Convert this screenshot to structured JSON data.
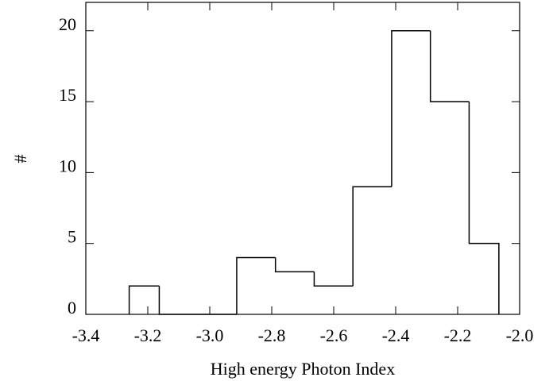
{
  "chart_data": {
    "type": "histogram",
    "x_label": "High energy Photon Index",
    "y_label": "#",
    "bins": [
      -3.26,
      -3.163,
      -3.038,
      -2.913,
      -2.788,
      -2.663,
      -2.538,
      -2.413,
      -2.288,
      -2.163,
      -2.067
    ],
    "values": [
      2,
      0,
      0,
      4,
      3,
      2,
      9,
      20,
      15,
      5
    ],
    "color": "#000000",
    "xlim": [
      -3.4,
      -2.0
    ],
    "xticks": [
      {
        "value": -3.4,
        "label": "-3.4"
      },
      -3.2,
      {
        "value": -3.0,
        "label": "-3.0"
      },
      -2.8,
      -2.6,
      -2.4,
      -2.2,
      {
        "value": -2.0,
        "label": "-2.0"
      }
    ],
    "ylim": [
      0,
      22
    ],
    "yticks": [
      0,
      5,
      10,
      15,
      20
    ]
  }
}
